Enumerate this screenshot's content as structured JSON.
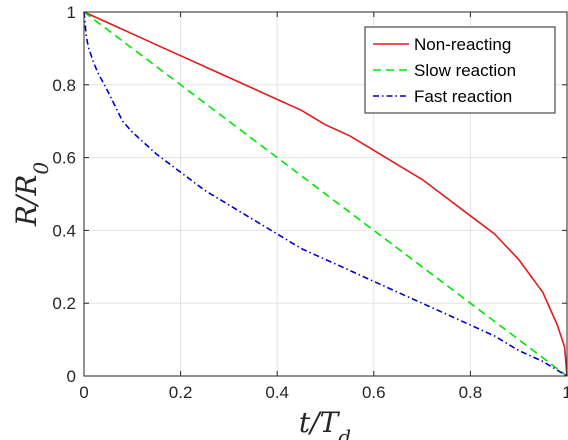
{
  "chart_data": {
    "type": "line",
    "title": "",
    "xlabel": "t/T_d",
    "ylabel": "R/R_0",
    "xlim": [
      0,
      1
    ],
    "ylim": [
      0,
      1
    ],
    "x_ticks": [
      "0",
      "0.2",
      "0.4",
      "0.6",
      "0.8",
      "1"
    ],
    "y_ticks": [
      "0",
      "0.2",
      "0.4",
      "0.6",
      "0.8",
      "1"
    ],
    "grid": true,
    "legend_position": "top-right",
    "series": [
      {
        "name": "Non-reacting",
        "color": "#e31a1c",
        "style": "solid",
        "x": [
          0,
          0.05,
          0.1,
          0.15,
          0.2,
          0.25,
          0.3,
          0.35,
          0.4,
          0.45,
          0.5,
          0.55,
          0.6,
          0.65,
          0.7,
          0.75,
          0.8,
          0.85,
          0.9,
          0.95,
          0.98,
          0.995,
          1.0
        ],
        "y": [
          1.0,
          0.97,
          0.94,
          0.91,
          0.88,
          0.85,
          0.82,
          0.79,
          0.76,
          0.73,
          0.69,
          0.66,
          0.62,
          0.58,
          0.54,
          0.49,
          0.44,
          0.39,
          0.32,
          0.23,
          0.14,
          0.08,
          0.0
        ]
      },
      {
        "name": "Slow reaction",
        "color": "#00e600",
        "style": "dashed",
        "x": [
          0,
          1
        ],
        "y": [
          1,
          0
        ]
      },
      {
        "name": "Fast reaction",
        "color": "#0000cc",
        "style": "dashdot",
        "x": [
          0,
          0.005,
          0.01,
          0.02,
          0.03,
          0.05,
          0.08,
          0.1,
          0.15,
          0.2,
          0.25,
          0.3,
          0.35,
          0.4,
          0.45,
          0.5,
          0.55,
          0.6,
          0.65,
          0.7,
          0.75,
          0.8,
          0.85,
          0.9,
          0.95,
          1.0
        ],
        "y": [
          1.0,
          0.93,
          0.9,
          0.86,
          0.83,
          0.78,
          0.7,
          0.67,
          0.61,
          0.56,
          0.51,
          0.47,
          0.43,
          0.39,
          0.35,
          0.32,
          0.29,
          0.26,
          0.23,
          0.2,
          0.17,
          0.14,
          0.11,
          0.07,
          0.04,
          0.0
        ]
      }
    ]
  }
}
